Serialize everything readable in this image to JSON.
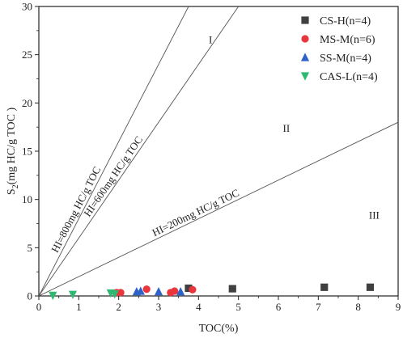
{
  "chart_data": {
    "type": "scatter",
    "xlabel": "TOC(%)",
    "ylabel_main": "S",
    "ylabel_sub": "2",
    "ylabel_rest": "(mg HC/g TOC )",
    "xlim": [
      0,
      9
    ],
    "ylim": [
      0,
      30
    ],
    "xticks": [
      0,
      1,
      2,
      3,
      4,
      5,
      6,
      7,
      8,
      9
    ],
    "yticks": [
      0,
      5,
      10,
      15,
      20,
      25,
      30
    ],
    "grid": false,
    "legend_position": "top-right",
    "series": [
      {
        "name": "CS-H(n=4)",
        "marker": "square",
        "color": "#404040",
        "points": [
          [
            3.75,
            0.8
          ],
          [
            4.85,
            0.75
          ],
          [
            7.15,
            0.9
          ],
          [
            8.3,
            0.9
          ]
        ]
      },
      {
        "name": "MS-M(n=6)",
        "marker": "circle",
        "color": "#e8363c",
        "points": [
          [
            1.95,
            0.35
          ],
          [
            2.05,
            0.35
          ],
          [
            2.7,
            0.7
          ],
          [
            3.3,
            0.35
          ],
          [
            3.4,
            0.5
          ],
          [
            3.85,
            0.65
          ]
        ]
      },
      {
        "name": "SS-M(n=4)",
        "marker": "triangle-up",
        "color": "#2f62c8",
        "points": [
          [
            2.45,
            0.45
          ],
          [
            2.55,
            0.5
          ],
          [
            3.0,
            0.45
          ],
          [
            3.55,
            0.45
          ]
        ]
      },
      {
        "name": "CAS-L(n=4)",
        "marker": "triangle-down",
        "color": "#2eb872",
        "points": [
          [
            0.35,
            0.05
          ],
          [
            0.85,
            0.15
          ],
          [
            1.8,
            0.3
          ],
          [
            1.9,
            0.2
          ]
        ]
      }
    ],
    "reference_lines": [
      {
        "label": "HI=800mg HC/g TOC",
        "slope": 8
      },
      {
        "label": "HI=600mg HC/g TOC",
        "slope": 6
      },
      {
        "label": "HI=200mg HC/g TOC",
        "slope": 2
      }
    ],
    "region_labels": [
      {
        "text": "I",
        "x": 4.3,
        "y": 26.2
      },
      {
        "text": "II",
        "x": 6.2,
        "y": 17.0
      },
      {
        "text": "III",
        "x": 8.4,
        "y": 8.0
      }
    ]
  },
  "colors": {
    "axis": "#222222",
    "reference_line": "#555555"
  }
}
